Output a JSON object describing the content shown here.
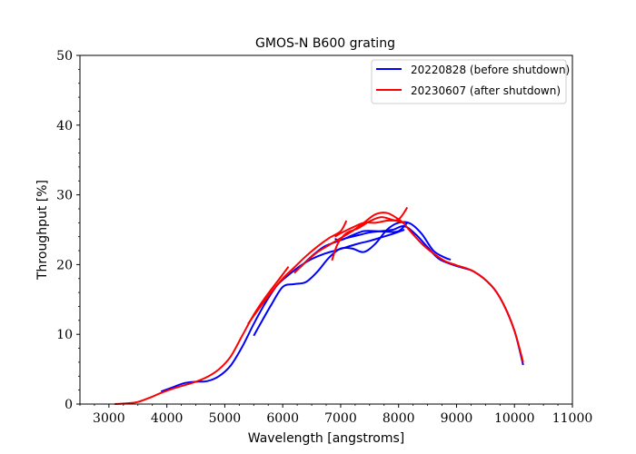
{
  "chart_data": {
    "type": "line",
    "title": "GMOS-N B600 grating",
    "xlabel": "Wavelength [angstroms]",
    "ylabel": "Throughput [%]",
    "xlim": [
      2500,
      11000
    ],
    "ylim": [
      0,
      50
    ],
    "xticks": [
      3000,
      4000,
      5000,
      6000,
      7000,
      8000,
      9000,
      10000,
      11000
    ],
    "yticks": [
      0,
      10,
      20,
      30,
      40,
      50
    ],
    "grid": false,
    "legend_position": "top-right",
    "series": [
      {
        "name": "20220828 (before shutdown)",
        "color": "#0000ff",
        "curves": [
          {
            "x": [
              3900,
              4100,
              4300,
              4500,
              4700,
              4900,
              5100,
              5300,
              5500,
              5700,
              5900,
              6100,
              6300,
              6500,
              6700,
              6900,
              7100,
              7300,
              7500,
              7700,
              7900,
              8100
            ],
            "y": [
              1.8,
              2.4,
              3.0,
              3.2,
              3.3,
              4.0,
              5.5,
              8.2,
              11.5,
              14.5,
              17.0,
              18.5,
              19.8,
              20.8,
              21.5,
              22.0,
              22.5,
              23.0,
              23.4,
              23.9,
              24.4,
              25.0
            ]
          },
          {
            "x": [
              5500,
              5600,
              5800,
              6000,
              6200,
              6400,
              6600,
              6800,
              7000,
              7200,
              7400,
              7600,
              7800,
              8000,
              8200,
              8400,
              8600,
              8800,
              8900
            ],
            "y": [
              9.8,
              11.3,
              14.2,
              16.8,
              17.2,
              17.5,
              19.0,
              21.0,
              22.3,
              22.3,
              21.8,
              23.0,
              25.0,
              26.0,
              25.9,
              24.4,
              22.0,
              21.0,
              20.7
            ]
          },
          {
            "x": [
              6300,
              6500,
              6700,
              6900,
              7100,
              7300,
              7500,
              7700,
              7900,
              8100,
              8300,
              8500,
              8700,
              9000,
              9300,
              9600,
              9800,
              10000,
              10150
            ],
            "y": [
              19.6,
              21.2,
              22.5,
              23.2,
              23.8,
              24.2,
              24.6,
              24.8,
              25.0,
              25.5,
              24.3,
              22.5,
              20.8,
              19.8,
              19.0,
              17.0,
              14.5,
              10.5,
              5.6
            ]
          },
          {
            "x": [
              6900,
              7000,
              7200,
              7400,
              7600,
              7800,
              8000,
              8150
            ],
            "y": [
              23.7,
              23.5,
              24.2,
              24.8,
              24.8,
              24.7,
              24.8,
              26.0
            ]
          }
        ]
      },
      {
        "name": "20230607 (after shutdown)",
        "color": "#ff0000",
        "curves": [
          {
            "x": [
              3100,
              3300,
              3500,
              3700,
              3900,
              4100,
              4300,
              4500,
              4700,
              4900,
              5100,
              5300,
              5500,
              5700,
              5900,
              6100
            ],
            "y": [
              0.0,
              0.1,
              0.3,
              0.9,
              1.6,
              2.2,
              2.7,
              3.2,
              3.9,
              5.0,
              6.8,
              9.8,
              12.8,
              15.3,
              17.5,
              19.7
            ]
          },
          {
            "x": [
              5400,
              5600,
              5800,
              6000,
              6200,
              6400,
              6600,
              6800,
              7000,
              7100
            ],
            "y": [
              11.5,
              13.8,
              16.0,
              18.0,
              19.6,
              21.2,
              22.6,
              23.8,
              24.8,
              26.3
            ]
          },
          {
            "x": [
              6200,
              6400,
              6600,
              6800,
              7000,
              7200,
              7400,
              7600,
              7800,
              8000,
              8100,
              8200,
              8400,
              8600,
              8800,
              9000,
              9300,
              9600,
              9800,
              10000,
              10150
            ],
            "y": [
              18.8,
              20.4,
              21.8,
              22.8,
              23.8,
              24.8,
              26.0,
              27.2,
              27.4,
              26.5,
              25.8,
              24.8,
              23.0,
              21.6,
              20.5,
              19.9,
              19.0,
              17.0,
              14.5,
              10.5,
              6.0
            ]
          },
          {
            "x": [
              6900,
              7000,
              7200,
              7400,
              7600,
              7800,
              8000,
              8150
            ],
            "y": [
              24.0,
              24.5,
              25.3,
              26.0,
              26.0,
              26.3,
              26.5,
              28.2
            ]
          },
          {
            "x": [
              6850,
              6950,
              7100,
              7300,
              7500,
              7700,
              7900,
              8100
            ],
            "y": [
              20.6,
              23.0,
              24.5,
              25.2,
              26.2,
              26.8,
              26.4,
              26.0
            ]
          }
        ]
      }
    ]
  }
}
